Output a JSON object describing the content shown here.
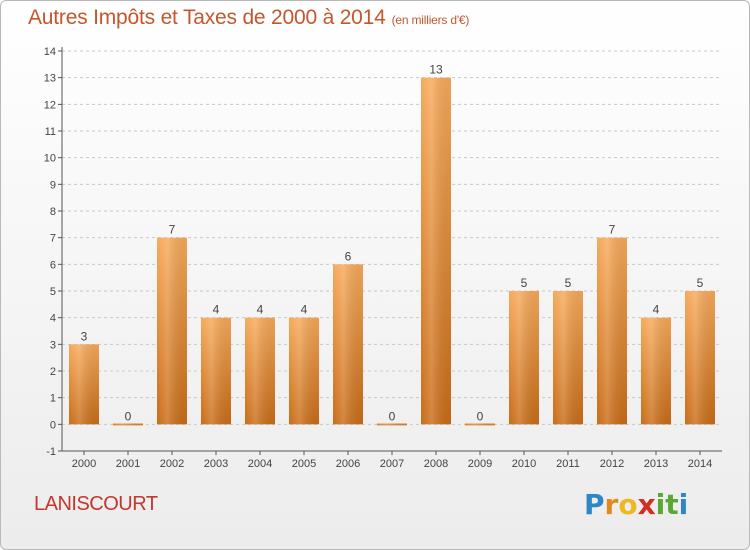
{
  "title": "Autres Impôts et Taxes de 2000 à 2014",
  "subtitle": "(en milliers d'€)",
  "commune": "LANISCOURT",
  "logo": {
    "letters": [
      "P",
      "r",
      "o",
      "x",
      "i",
      "t",
      "i"
    ],
    "colors": [
      "#2e86c8",
      "#e0891d",
      "#f0b820",
      "#d32f1f",
      "#5aa832",
      "#5aa832",
      "#2e86c8"
    ]
  },
  "colors": {
    "bar_top": "#f6a95a",
    "bar_bottom": "#c96c17",
    "title": "#c4572d",
    "grid": "#c8c8c8"
  },
  "chart_data": {
    "type": "bar",
    "title": "Autres Impôts et Taxes de 2000 à 2014",
    "subtitle": "(en milliers d'€)",
    "categories": [
      "2000",
      "2001",
      "2002",
      "2003",
      "2004",
      "2005",
      "2006",
      "2007",
      "2008",
      "2009",
      "2010",
      "2011",
      "2012",
      "2013",
      "2014"
    ],
    "values": [
      3,
      0,
      7,
      4,
      4,
      4,
      6,
      0,
      13,
      0,
      5,
      5,
      7,
      4,
      5
    ],
    "ylim": [
      -1,
      14
    ],
    "yticks": [
      -1,
      0,
      1,
      2,
      3,
      4,
      5,
      6,
      7,
      8,
      9,
      10,
      11,
      12,
      13,
      14
    ],
    "grid": "horizontal",
    "legend": "none",
    "xlabel": "",
    "ylabel": ""
  }
}
